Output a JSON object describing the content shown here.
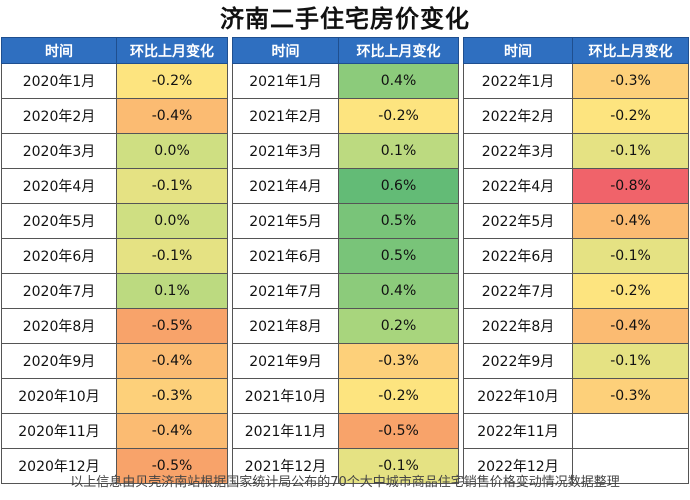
{
  "chart_data": {
    "type": "table",
    "title": "济南二手住宅房价变化",
    "headers": [
      "时间",
      "环比上月变化"
    ],
    "panels": [
      {
        "rows": [
          {
            "period": "2020年1月",
            "value": -0.2,
            "label": "-0.2%"
          },
          {
            "period": "2020年2月",
            "value": -0.4,
            "label": "-0.4%"
          },
          {
            "period": "2020年3月",
            "value": 0.0,
            "label": "0.0%"
          },
          {
            "period": "2020年4月",
            "value": -0.1,
            "label": "-0.1%"
          },
          {
            "period": "2020年5月",
            "value": 0.0,
            "label": "0.0%"
          },
          {
            "period": "2020年6月",
            "value": -0.1,
            "label": "-0.1%"
          },
          {
            "period": "2020年7月",
            "value": 0.1,
            "label": "0.1%"
          },
          {
            "period": "2020年8月",
            "value": -0.5,
            "label": "-0.5%"
          },
          {
            "period": "2020年9月",
            "value": -0.4,
            "label": "-0.4%"
          },
          {
            "period": "2020年10月",
            "value": -0.3,
            "label": "-0.3%"
          },
          {
            "period": "2020年11月",
            "value": -0.4,
            "label": "-0.4%"
          },
          {
            "period": "2020年12月",
            "value": -0.5,
            "label": "-0.5%"
          }
        ]
      },
      {
        "rows": [
          {
            "period": "2021年1月",
            "value": 0.4,
            "label": "0.4%"
          },
          {
            "period": "2021年2月",
            "value": -0.2,
            "label": "-0.2%"
          },
          {
            "period": "2021年3月",
            "value": 0.1,
            "label": "0.1%"
          },
          {
            "period": "2021年4月",
            "value": 0.6,
            "label": "0.6%"
          },
          {
            "period": "2021年5月",
            "value": 0.5,
            "label": "0.5%"
          },
          {
            "period": "2021年6月",
            "value": 0.5,
            "label": "0.5%"
          },
          {
            "period": "2021年7月",
            "value": 0.4,
            "label": "0.4%"
          },
          {
            "period": "2021年8月",
            "value": 0.2,
            "label": "0.2%"
          },
          {
            "period": "2021年9月",
            "value": -0.3,
            "label": "-0.3%"
          },
          {
            "period": "2021年10月",
            "value": -0.2,
            "label": "-0.2%"
          },
          {
            "period": "2021年11月",
            "value": -0.5,
            "label": "-0.5%"
          },
          {
            "period": "2021年12月",
            "value": -0.1,
            "label": "-0.1%"
          }
        ]
      },
      {
        "rows": [
          {
            "period": "2022年1月",
            "value": -0.3,
            "label": "-0.3%"
          },
          {
            "period": "2022年2月",
            "value": -0.2,
            "label": "-0.2%"
          },
          {
            "period": "2022年3月",
            "value": -0.1,
            "label": "-0.1%"
          },
          {
            "period": "2022年4月",
            "value": -0.8,
            "label": "-0.8%"
          },
          {
            "period": "2022年5月",
            "value": -0.4,
            "label": "-0.4%"
          },
          {
            "period": "2022年6月",
            "value": -0.1,
            "label": "-0.1%"
          },
          {
            "period": "2022年7月",
            "value": -0.2,
            "label": "-0.2%"
          },
          {
            "period": "2022年8月",
            "value": -0.4,
            "label": "-0.4%"
          },
          {
            "period": "2022年9月",
            "value": -0.1,
            "label": "-0.1%"
          },
          {
            "period": "2022年10月",
            "value": -0.3,
            "label": "-0.3%"
          },
          {
            "period": "2022年11月",
            "value": null,
            "label": ""
          },
          {
            "period": "2022年12月",
            "value": null,
            "label": ""
          }
        ]
      }
    ],
    "color_scale": {
      "-0.8": "#f0636a",
      "-0.5": "#f8a36a",
      "-0.4": "#fbbb72",
      "-0.3": "#fdd07a",
      "-0.2": "#fde47f",
      "-0.1": "#e5e283",
      "0.0": "#cfdf82",
      "0.1": "#bcda80",
      "0.2": "#a8d57d",
      "0.4": "#8ccb7b",
      "0.5": "#79c479",
      "0.6": "#63bb76"
    },
    "header_color": "#2f6fc0"
  },
  "footer": "以上信息由贝壳济南站根据国家统计局公布的70个大中城市商品住宅销售价格变动情况数据整理"
}
